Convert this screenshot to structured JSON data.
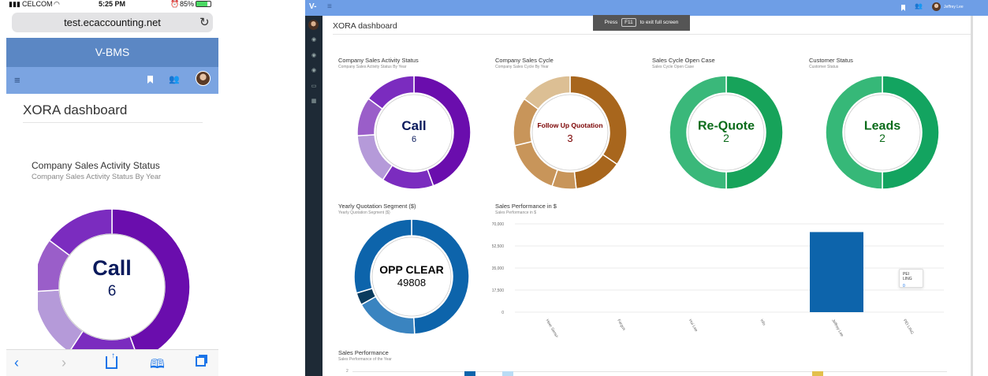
{
  "phone": {
    "carrier": "CELCOM",
    "time": "5:25 PM",
    "battery": "85%",
    "url": "test.ecaccounting.net",
    "app_title": "V-BMS",
    "dashboard_title": "XORA dashboard",
    "chart_title": "Company Sales Activity Status",
    "chart_subtitle": "Company Sales Activity Status By Year",
    "center_label": "Call",
    "center_value": "6",
    "icons": [
      "reload-icon",
      "menu-icon",
      "bookmark-icon",
      "users-icon",
      "avatar",
      "back-icon",
      "forward-icon",
      "share-icon",
      "book-icon",
      "tabs-icon"
    ]
  },
  "desktop": {
    "brand": "V-",
    "user_name": "Jeffrey Lee",
    "dashboard_title": "XORA dashboard",
    "fullscreen_hint": {
      "pre": "Press",
      "key": "F11",
      "post": "to exit full screen"
    },
    "donuts": [
      {
        "title": "Company Sales Activity Status",
        "subtitle": "Company Sales Activity Status By Year",
        "label": "Call",
        "value": "6",
        "label_color": "#0a1a5c",
        "value_color": "#0a1a5c"
      },
      {
        "title": "Company Sales Cycle",
        "subtitle": "Company Sales Cycle By Year",
        "label": "Follow Up Quotation",
        "value": "3",
        "label_color": "#7a0000",
        "value_color": "#7a0000"
      },
      {
        "title": "Sales Cycle Open Case",
        "subtitle": "Sales Cycle Open Case",
        "label": "Re-Quote",
        "value": "2",
        "label_color": "#0b6b1a",
        "value_color": "#0b6b1a"
      },
      {
        "title": "Customer Status",
        "subtitle": "Customer Status",
        "label": "Leads",
        "value": "2",
        "label_color": "#0b6b1a",
        "value_color": "#0b6b1a"
      },
      {
        "title": "Yearly Quotation Segment ($)",
        "subtitle": "Yearly Quotation Segment ($)",
        "label": "OPP CLEAR",
        "value": "49808",
        "label_color": "#000000",
        "value_color": "#000000"
      }
    ],
    "bar_chart": {
      "title": "Sales Performance in $",
      "subtitle": "Sales Performance in $"
    },
    "bar_chart2": {
      "title": "Sales Performance",
      "subtitle": "Sales Performance of the Year",
      "y_first_tick": "2"
    },
    "tooltip": {
      "name": "PEI LING",
      "value": "0"
    }
  },
  "chart_data": [
    {
      "type": "pie",
      "title": "Company Sales Activity Status",
      "values": [
        6,
        2,
        2,
        1.5,
        2
      ],
      "colors": [
        "#6a0dad",
        "#7b2cbf",
        "#b59ad9",
        "#9a5ec9",
        "#7b2cbf"
      ],
      "center": "Call 6"
    },
    {
      "type": "pie",
      "title": "Company Sales Cycle",
      "values": [
        3,
        1.2,
        0.6,
        1.4,
        1.2,
        1.3
      ],
      "colors": [
        "#a8661d",
        "#a8661d",
        "#c8955a",
        "#c8955a",
        "#c8955a",
        "#dcbf94"
      ],
      "center": "Follow Up Quotation 3"
    },
    {
      "type": "pie",
      "title": "Sales Cycle Open Case",
      "values": [
        2,
        2
      ],
      "colors": [
        "#17a35a",
        "#3ab87a"
      ],
      "center": "Re-Quote 2"
    },
    {
      "type": "pie",
      "title": "Customer Status",
      "values": [
        2,
        2
      ],
      "colors": [
        "#13a460",
        "#36b878"
      ],
      "center": "Leads 2"
    },
    {
      "type": "pie",
      "title": "Yearly Quotation Segment ($)",
      "values": [
        49808,
        18000,
        3500,
        30000
      ],
      "colors": [
        "#0d64ab",
        "#3a84c0",
        "#0a3b5e",
        "#0d64ab"
      ],
      "center": "OPP CLEAR 49808"
    },
    {
      "type": "bar",
      "title": "Sales Performance in $",
      "categories": [
        "Heer Sensive",
        "Fargus",
        "Hui Lee",
        "info",
        "Jeffrey Lee",
        "PEI LING"
      ],
      "values": [
        0,
        0,
        0,
        0,
        63500,
        0
      ],
      "yticks": [
        "0",
        "17,500",
        "35,000",
        "52,500",
        "70,000"
      ],
      "ylim": [
        0,
        70000
      ],
      "color": "#0d64ab"
    }
  ]
}
